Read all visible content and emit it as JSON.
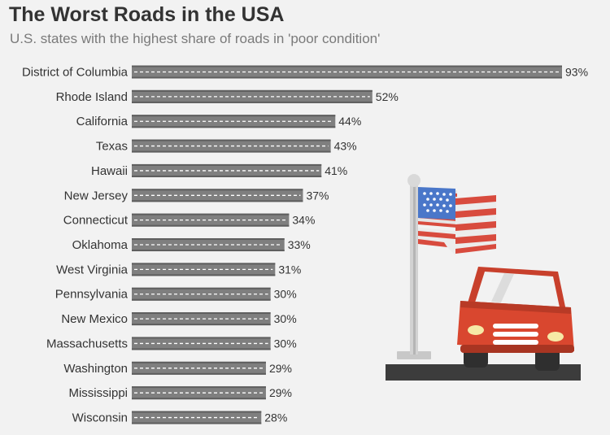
{
  "chart_data": {
    "type": "bar",
    "orientation": "horizontal",
    "title": "The Worst Roads in the USA",
    "subtitle": "U.S. states with the highest share of roads in 'poor condition'",
    "categories": [
      "District of Columbia",
      "Rhode Island",
      "California",
      "Texas",
      "Hawaii",
      "New Jersey",
      "Connecticut",
      "Oklahoma",
      "West Virginia",
      "Pennsylvania",
      "New Mexico",
      "Massachusetts",
      "Washington",
      "Mississippi",
      "Wisconsin"
    ],
    "values": [
      93,
      52,
      44,
      43,
      41,
      37,
      34,
      33,
      31,
      30,
      30,
      30,
      29,
      29,
      28
    ],
    "data_labels": [
      "93%",
      "52%",
      "44%",
      "43%",
      "41%",
      "37%",
      "34%",
      "33%",
      "31%",
      "30%",
      "30%",
      "30%",
      "29%",
      "29%",
      "28%"
    ],
    "unit": "%",
    "xlim": [
      0,
      93
    ],
    "grid": false,
    "legend": "none",
    "bar_style": "road"
  },
  "colors": {
    "road": "#7f7f7f",
    "road_edge": "#5e5e5e",
    "lane_marking": "#ffffff",
    "background": "#f2f2f2"
  },
  "illustration": {
    "flag_icon": "us-flag-icon",
    "car_icon": "red-car-icon"
  }
}
